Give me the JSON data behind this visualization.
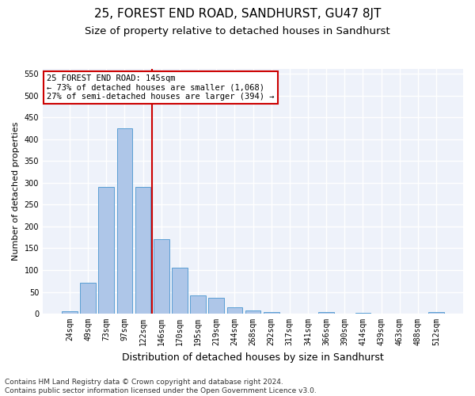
{
  "title1": "25, FOREST END ROAD, SANDHURST, GU47 8JT",
  "title2": "Size of property relative to detached houses in Sandhurst",
  "xlabel": "Distribution of detached houses by size in Sandhurst",
  "ylabel": "Number of detached properties",
  "footnote": "Contains HM Land Registry data © Crown copyright and database right 2024.\nContains public sector information licensed under the Open Government Licence v3.0.",
  "bar_labels": [
    "24sqm",
    "49sqm",
    "73sqm",
    "97sqm",
    "122sqm",
    "146sqm",
    "170sqm",
    "195sqm",
    "219sqm",
    "244sqm",
    "268sqm",
    "292sqm",
    "317sqm",
    "341sqm",
    "366sqm",
    "390sqm",
    "414sqm",
    "439sqm",
    "463sqm",
    "488sqm",
    "512sqm"
  ],
  "bar_values": [
    5,
    70,
    290,
    425,
    290,
    170,
    105,
    42,
    37,
    15,
    7,
    3,
    1,
    0,
    3,
    0,
    2,
    1,
    0,
    0,
    3
  ],
  "bar_color": "#aec6e8",
  "bar_edge_color": "#5a9fd4",
  "ylim": [
    0,
    560
  ],
  "yticks": [
    0,
    50,
    100,
    150,
    200,
    250,
    300,
    350,
    400,
    450,
    500,
    550
  ],
  "vline_color": "#cc0000",
  "annotation_text": "25 FOREST END ROAD: 145sqm\n← 73% of detached houses are smaller (1,068)\n27% of semi-detached houses are larger (394) →",
  "annotation_box_color": "#ffffff",
  "annotation_box_edge": "#cc0000",
  "background_color": "#eef2fa",
  "grid_color": "#ffffff",
  "title1_fontsize": 11,
  "title2_fontsize": 9.5,
  "ylabel_fontsize": 8,
  "xlabel_fontsize": 9,
  "tick_fontsize": 7,
  "annot_fontsize": 7.5,
  "footnote_fontsize": 6.5,
  "vline_bar_index": 4.5
}
